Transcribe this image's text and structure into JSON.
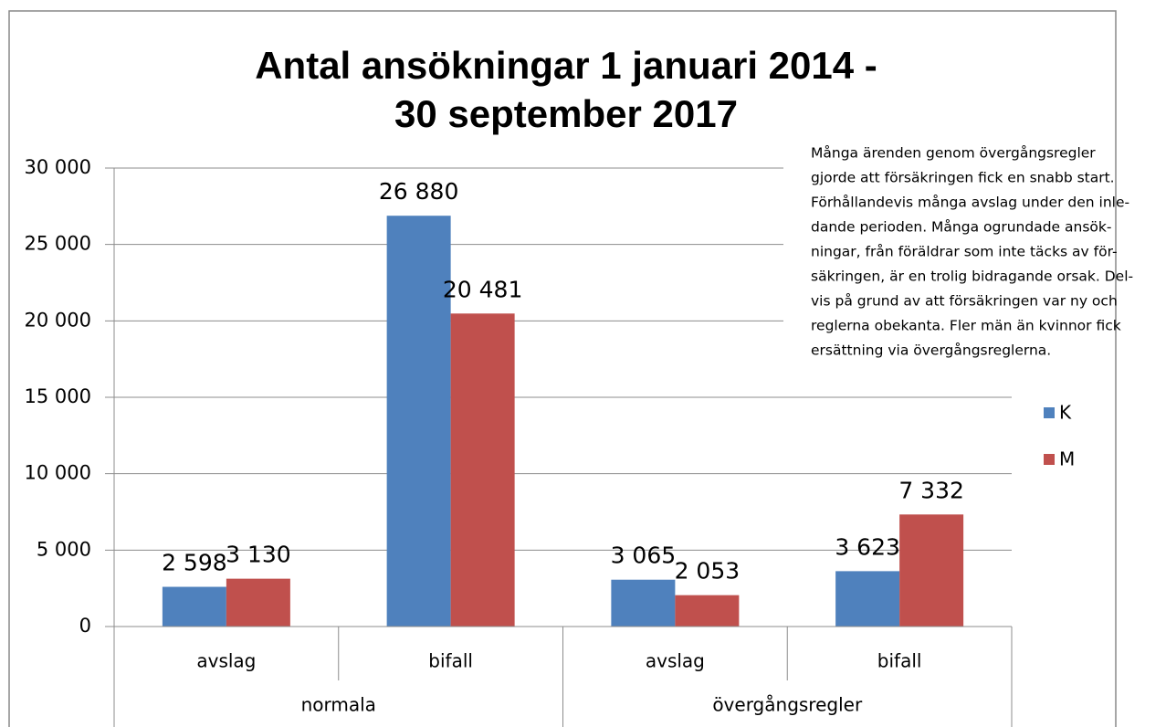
{
  "chart_data": {
    "type": "bar",
    "title": [
      "Antal ansökningar 1 januari 2014 -",
      "30 september 2017"
    ],
    "categories": [
      "avslag",
      "bifall",
      "avslag",
      "bifall"
    ],
    "groups": [
      {
        "name": "normala",
        "span": 2
      },
      {
        "name": "övergångsregler",
        "span": 2
      }
    ],
    "series": [
      {
        "name": "K",
        "color": "#4f81bd",
        "values": [
          2598,
          26880,
          3065,
          3623
        ],
        "value_labels": [
          "2 598",
          "26 880",
          "3 065",
          "3 623"
        ]
      },
      {
        "name": "M",
        "color": "#c0504d",
        "values": [
          3130,
          20481,
          2053,
          7332
        ],
        "value_labels": [
          "3 130",
          "20 481",
          "2 053",
          "7 332"
        ]
      }
    ],
    "ylim": [
      0,
      30000
    ],
    "yticks": [
      0,
      {
        "value": 5000,
        "label": "5 000"
      },
      {
        "value": 10000,
        "label": "10 000"
      },
      {
        "value": 15000,
        "label": "15 000"
      },
      {
        "value": 20000,
        "label": "20 000"
      },
      {
        "value": 25000,
        "label": "25 000"
      },
      {
        "value": 30000,
        "label": "30 000"
      }
    ],
    "grid": true,
    "legend": "right",
    "annotation": [
      "Många ärenden genom övergångsregler",
      "gjorde att försäkringen fick en snabb start.",
      "Förhållandevis många avslag under den inle-",
      "dande perioden. Många ogrundade ansök-",
      "ningar, från föräldrar som inte täcks av för-",
      "säkringen, är en trolig bidragande orsak. Del-",
      "vis på grund av att försäkringen var ny och",
      "reglerna obekanta. Fler män än kvinnor fick",
      "ersättning via övergångsreglerna."
    ]
  }
}
